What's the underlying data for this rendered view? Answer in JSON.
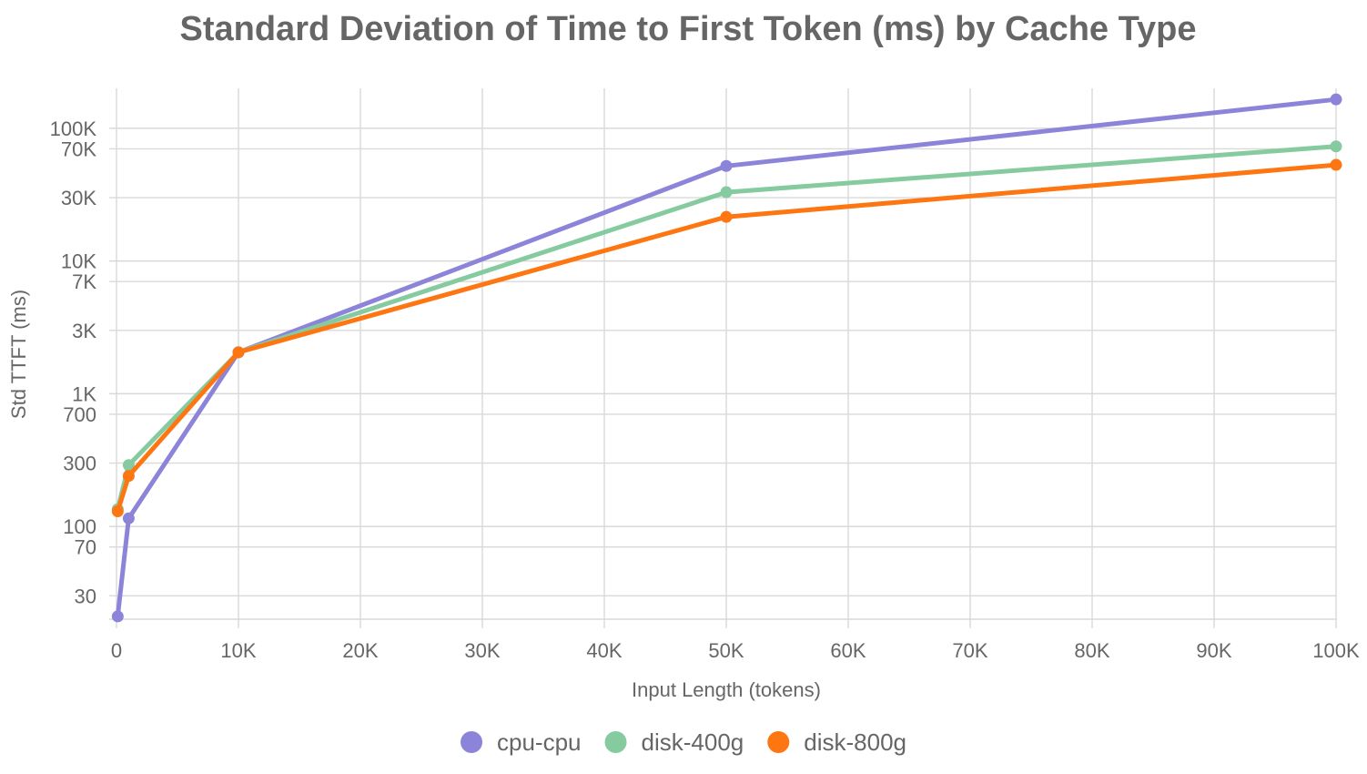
{
  "chart_data": {
    "type": "line",
    "title": "Standard Deviation of Time to First Token (ms) by Cache Type",
    "xlabel": "Input Length (tokens)",
    "ylabel": "Std TTFT (ms)",
    "xlim": [
      0,
      100000
    ],
    "ylim": [
      20,
      200000
    ],
    "yscale": "log",
    "grid": true,
    "legend_position": "bottom",
    "x": [
      100,
      1000,
      10000,
      50000,
      100000
    ],
    "x_ticks": [
      {
        "value": 0,
        "label": "0"
      },
      {
        "value": 10000,
        "label": "10K"
      },
      {
        "value": 20000,
        "label": "20K"
      },
      {
        "value": 30000,
        "label": "30K"
      },
      {
        "value": 40000,
        "label": "40K"
      },
      {
        "value": 50000,
        "label": "50K"
      },
      {
        "value": 60000,
        "label": "60K"
      },
      {
        "value": 70000,
        "label": "70K"
      },
      {
        "value": 80000,
        "label": "80K"
      },
      {
        "value": 90000,
        "label": "90K"
      },
      {
        "value": 100000,
        "label": "100K"
      }
    ],
    "y_ticks": [
      {
        "value": 30,
        "label": "30"
      },
      {
        "value": 70,
        "label": "70"
      },
      {
        "value": 100,
        "label": "100"
      },
      {
        "value": 300,
        "label": "300"
      },
      {
        "value": 700,
        "label": "700"
      },
      {
        "value": 1000,
        "label": "1K"
      },
      {
        "value": 3000,
        "label": "3K"
      },
      {
        "value": 7000,
        "label": "7K"
      },
      {
        "value": 10000,
        "label": "10K"
      },
      {
        "value": 30000,
        "label": "30K"
      },
      {
        "value": 70000,
        "label": "70K"
      },
      {
        "value": 100000,
        "label": "100K"
      }
    ],
    "series": [
      {
        "name": "cpu-cpu",
        "color": "#8c84d9",
        "values": [
          21,
          115,
          2050,
          52000,
          165000
        ]
      },
      {
        "name": "disk-400g",
        "color": "#86cba0",
        "values": [
          135,
          290,
          2050,
          33000,
          73000
        ]
      },
      {
        "name": "disk-800g",
        "color": "#fd7611",
        "values": [
          130,
          240,
          2050,
          21500,
          53000
        ]
      }
    ]
  }
}
